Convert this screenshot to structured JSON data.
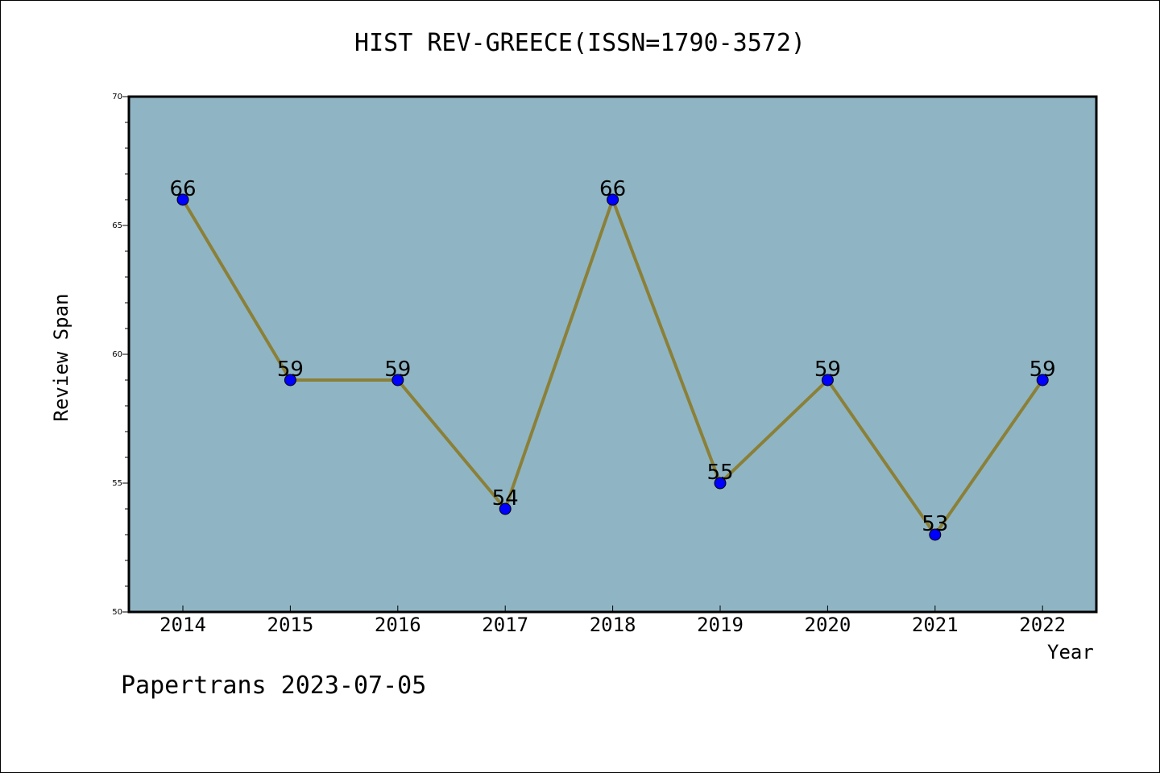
{
  "chart_data": {
    "type": "line",
    "title": "HIST REV-GREECE(ISSN=1790-3572)",
    "xlabel": "Year",
    "ylabel": "Review Span",
    "categories": [
      "2014",
      "2015",
      "2016",
      "2017",
      "2018",
      "2019",
      "2020",
      "2021",
      "2022"
    ],
    "series": [
      {
        "values": [
          66,
          59,
          59,
          54,
          66,
          55,
          59,
          53,
          59
        ]
      }
    ],
    "data_labels": [
      "66",
      "59",
      "59",
      "54",
      "66",
      "55",
      "59",
      "53",
      "59"
    ],
    "ylim": [
      50,
      70
    ],
    "yticks": [
      "50",
      "55",
      "60",
      "65",
      "70"
    ],
    "grid": false,
    "colors": {
      "plot_background": "#8fb5c4",
      "line": "#8b8038",
      "marker": "#0000ff"
    }
  },
  "footer": "Papertrans 2023-07-05"
}
